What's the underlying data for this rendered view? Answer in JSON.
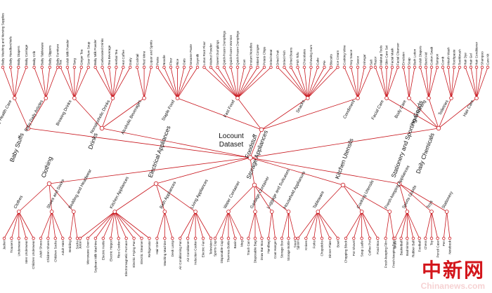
{
  "root": "Locount Dataset",
  "top": [
    {
      "name": "Baby Stuffs",
      "mids": [
        {
          "name": "Baby Health Care",
          "leaves": [
            "Baby Washing and Nursing Supplies",
            "Baby Handkerchiefs",
            "Baby Diapers",
            "Baby Carriage"
          ]
        },
        {
          "name": "Baby Daily Articles",
          "leaves": [
            "Baby Crib",
            "Baby Tableware",
            "Baby Slippers",
            "Baby Furniture"
          ]
        }
      ]
    },
    {
      "name": "Drinks",
      "mids": [
        {
          "name": "Brewing Drinks",
          "leaves": [
            "Tea",
            "Adult Milk Powder",
            "Tang",
            "Ginger Tea",
            "Sour Plum Soup"
          ]
        },
        {
          "name": "Nonalcoholic Drinks",
          "leaves": [
            "Baby Milk Powder",
            "Carbonated Drinks",
            "Tea Beverage",
            "Herbal Tea",
            "Hot Coffee",
            "Dairy"
          ]
        },
        {
          "name": "Alcoholic Beverages",
          "leaves": [
            "Cocktail",
            "Red Wine",
            "Liquor and Spirits"
          ]
        }
      ]
    },
    {
      "name": "Foodstuff",
      "mids": [
        {
          "name": "Staple Food",
          "leaves": [
            "Pasta",
            "Noodle",
            "Flour",
            "Rice",
            "Oats",
            "Sesame Paste",
            "Soymilk"
          ]
        },
        {
          "name": "Fast Food",
          "leaves": [
            "Lotus Root Flour",
            "Walnut Powder",
            "Sweet Dumplings",
            "Quick-frozen Dumplings",
            "Quick-frozen Wonton",
            "Quick-frozen Dumplings",
            "Can",
            "Instant Noodles",
            "Mixed Congee",
            "Potato Chips",
            "Dried Meat"
          ]
        },
        {
          "name": "Snacks",
          "leaves": [
            "Dried Fruit",
            "Dried Fish",
            "Dried Beans",
            "Fish Tofu",
            "Chocolates",
            "Chewing Gum",
            "Cake",
            "Pie",
            "Biscuits",
            "Ice Cream"
          ]
        },
        {
          "name": "Condiment",
          "leaves": [
            "Cooking Wine",
            "Soy Sauce",
            "Sauce",
            "Vinegar",
            "Salt"
          ]
        }
      ]
    },
    {
      "name": "Daily Chemicals",
      "mids": [
        {
          "name": "Facial Care",
          "leaves": [
            "Razor",
            "Makeup Tools",
            "Skin Care Set",
            "Facial Mask",
            "Facial Cleanser"
          ]
        },
        {
          "name": "Body Care",
          "leaves": [
            "Emulsion",
            "Soap",
            "Bath Lotion"
          ]
        },
        {
          "name": "Health Nursing",
          "leaves": [
            "Adult Diapers",
            "Band Aid",
            "Cotton Swab",
            "Tampon"
          ]
        },
        {
          "name": "Toiletries",
          "leaves": [
            "Comb",
            "Mouth Wash",
            "Toothpaste",
            "Toothbrush"
          ]
        },
        {
          "name": "Hair Care",
          "leaves": [
            "Hair Dye",
            "Hair Gel",
            "Hair Conditioner",
            "Shampoo",
            "Care Kit"
          ]
        }
      ]
    },
    {
      "name": "Clothing",
      "mids": [
        {
          "name": "Clothes",
          "leaves": [
            "Jacket",
            "Trousers",
            "Underwear",
            "Men Underwear",
            "Children Underwear"
          ]
        },
        {
          "name": "Shoes and Socks",
          "leaves": [
            "Adult Shoes",
            "Children Shoes",
            "Children Socks",
            "Adult Hats"
          ]
        },
        {
          "name": "Bedding and Headwear",
          "leaves": [
            "Bedding",
            "Socks"
          ]
        }
      ]
    },
    {
      "name": "Electrical Appliances",
      "mids": [
        {
          "name": "Kitchen Appliances",
          "leaves": [
            "Juicer",
            "Microwave Oven",
            "Soybean Milk Machine",
            "Electric Kettle",
            "Electric Hotpot",
            "Rice Cooker",
            "Electromagnetic Furnace",
            "Electric Frying Pan",
            "Electric Steamer",
            "Refrigerator"
          ]
        },
        {
          "name": "Bath Appliances",
          "leaves": [
            "Hair Drier",
            "Washing Machine",
            "Desk Lamp"
          ]
        },
        {
          "name": "Living Appliances",
          "leaves": [
            "Air Conditioning Fan",
            "Air Conditioner",
            "Induction Cooker",
            "Electric Fan",
            "Television"
          ]
        }
      ]
    },
    {
      "name": "Storage Appliances",
      "mids": [
        {
          "name": "Water Container",
          "leaves": [
            "Sports Cup",
            "Disposable Cup",
            "Thermos Bottle",
            "Basin",
            "Mug"
          ]
        },
        {
          "name": "Garbage Container",
          "leaves": [
            "Trash Can",
            "Disposable Bag",
            "Draw Bar Box"
          ]
        },
        {
          "name": "Luggage and Suitcases",
          "leaves": [
            "Handbag",
            "Coat Hanger"
          ]
        },
        {
          "name": "Household Appliances",
          "leaves": [
            "Storage Box",
            "Storage Bottle",
            "Stool"
          ]
        }
      ]
    },
    {
      "name": "Kitchen Utensils",
      "mids": [
        {
          "name": "Tableware",
          "leaves": [
            "Spoon",
            "Knives",
            "Forks",
            "Chopsticks",
            "Dinner Plate",
            "Bowl"
          ]
        },
        {
          "name": "Cooking Utensils",
          "leaves": [
            "Chopping Block",
            "Pot Shovel",
            "Soup Ladle",
            "Coffee Pot",
            "Food Box"
          ]
        },
        {
          "name": "Fresh-keeping Appliances",
          "leaves": [
            "Fresh-keeping Film",
            "Fresh-keeping Bag"
          ]
        }
      ]
    },
    {
      "name": "Stationery and Sporting Goods",
      "mids": [
        {
          "name": "Sports Goods",
          "leaves": [
            "Skate",
            "Basketball",
            "Badminton",
            "Rubber Ball",
            "Football"
          ]
        },
        {
          "name": "Toys",
          "leaves": [
            "Chess",
            "Toy",
            "Pencil Case"
          ]
        },
        {
          "name": "Stationery",
          "leaves": [
            "Pen",
            "Notebook"
          ]
        }
      ]
    }
  ],
  "watermark": {
    "cn": "中新网",
    "en": "Chinanews.com"
  }
}
